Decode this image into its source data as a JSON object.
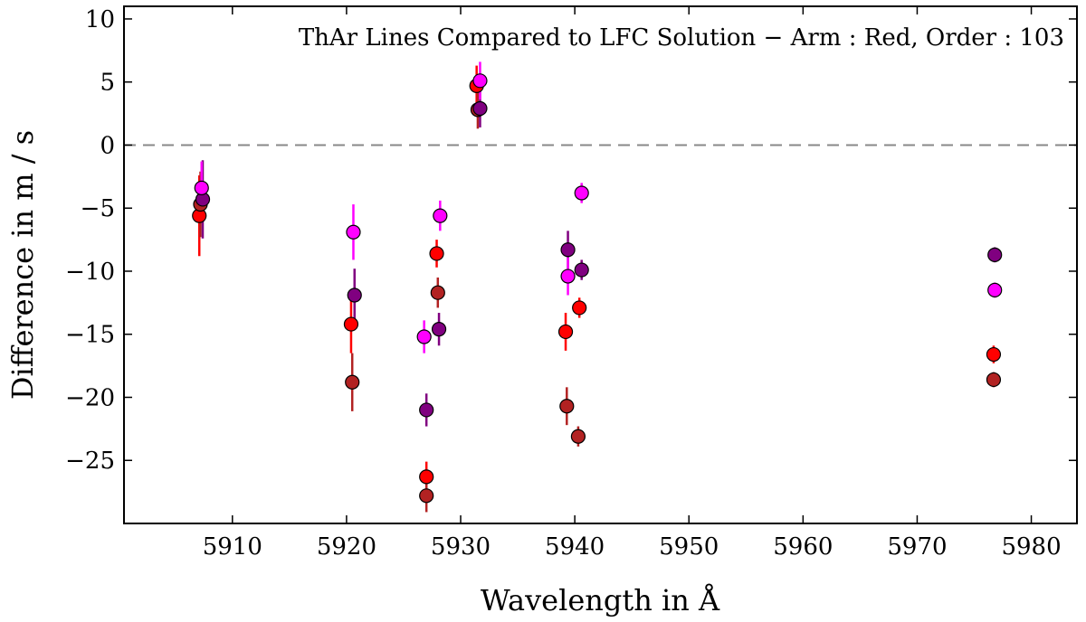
{
  "chart_data": {
    "type": "scatter",
    "title": "ThAr Lines Compared to LFC Solution −  Arm :  Red,  Order : 103",
    "xlabel": "Wavelength in Å",
    "ylabel": "Difference in m / s",
    "xlim": [
      5900.5,
      5984
    ],
    "ylim": [
      -30,
      11
    ],
    "xticks": [
      5910,
      5920,
      5930,
      5940,
      5950,
      5960,
      5970,
      5980
    ],
    "yticks": [
      10,
      5,
      0,
      -5,
      -10,
      -15,
      -20,
      -25
    ],
    "reference_line": 0,
    "series": [
      {
        "name": "red",
        "color": "#ff0000",
        "points": [
          {
            "x": 5907.1,
            "y": -5.6,
            "err": 3.2
          },
          {
            "x": 5920.4,
            "y": -14.2,
            "err": 2.3
          },
          {
            "x": 5927.0,
            "y": -26.3,
            "err": 1.2
          },
          {
            "x": 5927.9,
            "y": -8.6,
            "err": 1.1
          },
          {
            "x": 5931.4,
            "y": 4.7,
            "err": 1.6
          },
          {
            "x": 5939.2,
            "y": -14.8,
            "err": 1.5
          },
          {
            "x": 5940.4,
            "y": -12.9,
            "err": 0.8
          },
          {
            "x": 5976.7,
            "y": -16.6,
            "err": 0.7
          }
        ]
      },
      {
        "name": "brown",
        "color": "#b22222",
        "points": [
          {
            "x": 5907.2,
            "y": -4.7,
            "err": 2.6
          },
          {
            "x": 5920.5,
            "y": -18.8,
            "err": 2.3
          },
          {
            "x": 5927.0,
            "y": -27.8,
            "err": 1.3
          },
          {
            "x": 5928.0,
            "y": -11.7,
            "err": 1.2
          },
          {
            "x": 5931.5,
            "y": 2.8,
            "err": 1.5
          },
          {
            "x": 5939.3,
            "y": -20.7,
            "err": 1.5
          },
          {
            "x": 5940.3,
            "y": -23.1,
            "err": 0.8
          },
          {
            "x": 5976.7,
            "y": -18.6,
            "err": 0.6
          }
        ]
      },
      {
        "name": "purple",
        "color": "#800080",
        "points": [
          {
            "x": 5907.4,
            "y": -4.3,
            "err": 3.1
          },
          {
            "x": 5920.7,
            "y": -11.9,
            "err": 2.1
          },
          {
            "x": 5927.0,
            "y": -21.0,
            "err": 1.3
          },
          {
            "x": 5928.1,
            "y": -14.6,
            "err": 1.3
          },
          {
            "x": 5931.7,
            "y": 2.9,
            "err": 1.5
          },
          {
            "x": 5939.4,
            "y": -8.3,
            "err": 1.5
          },
          {
            "x": 5940.6,
            "y": -9.9,
            "err": 0.8
          },
          {
            "x": 5976.8,
            "y": -8.7,
            "err": 0.6
          }
        ]
      },
      {
        "name": "magenta",
        "color": "#ff00ff",
        "points": [
          {
            "x": 5907.3,
            "y": -3.4,
            "err": 2.1
          },
          {
            "x": 5920.6,
            "y": -6.9,
            "err": 2.2
          },
          {
            "x": 5926.8,
            "y": -15.2,
            "err": 1.3
          },
          {
            "x": 5928.2,
            "y": -5.6,
            "err": 1.2
          },
          {
            "x": 5931.7,
            "y": 5.1,
            "err": 1.5
          },
          {
            "x": 5939.4,
            "y": -10.4,
            "err": 1.5
          },
          {
            "x": 5940.6,
            "y": -3.8,
            "err": 0.8
          },
          {
            "x": 5976.8,
            "y": -11.5,
            "err": 0.6
          }
        ]
      }
    ]
  }
}
